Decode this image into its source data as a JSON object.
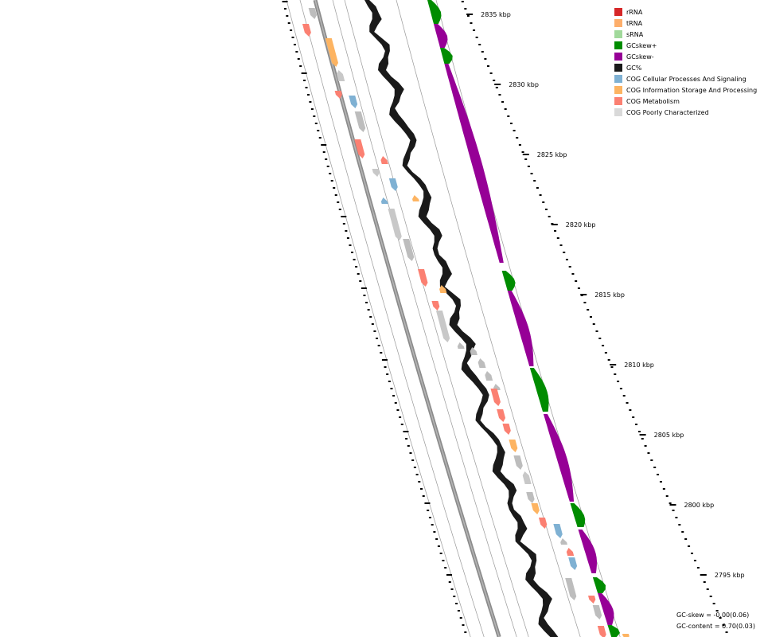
{
  "legend": [
    {
      "label": "rRNA",
      "color": "#d62728"
    },
    {
      "label": "tRNA",
      "color": "#fdae6b"
    },
    {
      "label": "sRNA",
      "color": "#a1d99b"
    },
    {
      "label": "GCskew+",
      "color": "#008c00"
    },
    {
      "label": "GCskew-",
      "color": "#960096"
    },
    {
      "label": "GC%",
      "color": "#1a1a1a"
    },
    {
      "label": "COG Cellular Processes And Signaling",
      "color": "#7fb1d3"
    },
    {
      "label": "COG Information Storage And Processing",
      "color": "#fdb462"
    },
    {
      "label": "COG Metabolism",
      "color": "#fb8072"
    },
    {
      "label": "COG Poorly Characterized",
      "color": "#d9d9d9"
    }
  ],
  "ticks": [
    "2835 kbp",
    "2830 kbp",
    "2825 kbp",
    "2820 kbp",
    "2815 kbp",
    "2810 kbp",
    "2805 kbp",
    "2800 kbp",
    "2795 kbp"
  ],
  "stats": {
    "gc_skew": "GC-skew = -0.00(0.06)",
    "gc_content": "GC-content = 0.70(0.03)"
  }
}
